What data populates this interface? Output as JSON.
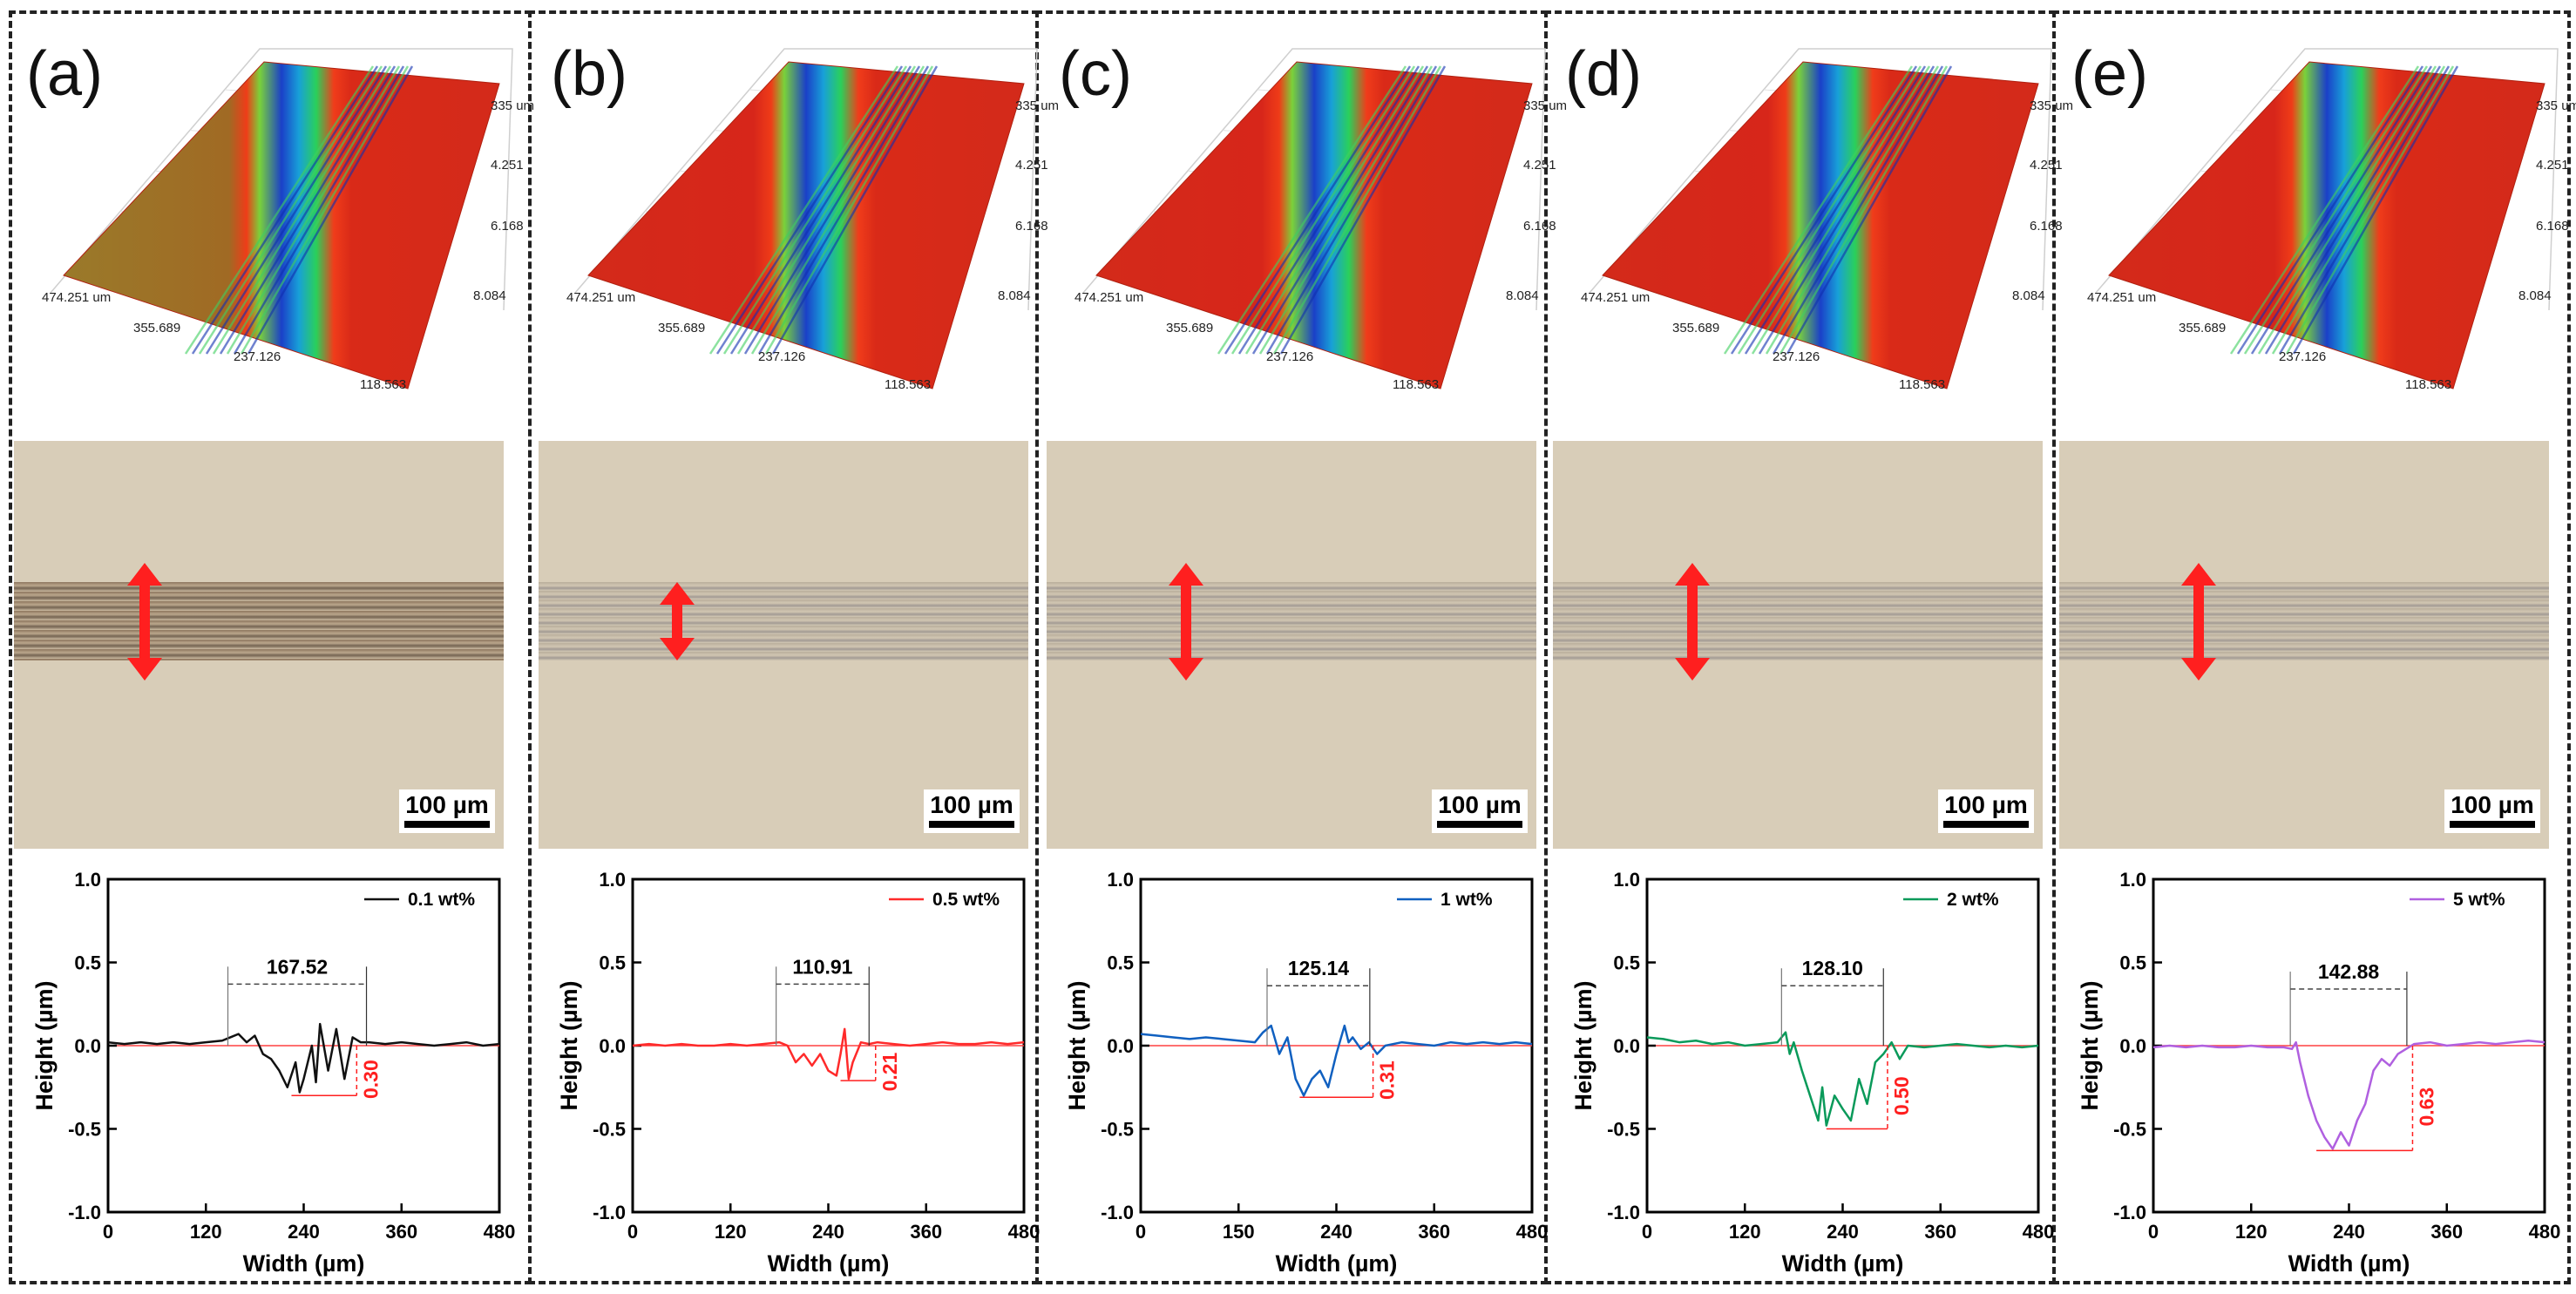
{
  "figure": {
    "panels": [
      {
        "label": "(a)",
        "scalebar": "100 µm",
        "surface3d": {
          "axis_labels": [
            "474.251 um",
            "355.689",
            "237.126",
            "118.563",
            "335 um",
            "4.251",
            "6.168",
            "8.084"
          ]
        },
        "colors": {
          "trace": "#111111",
          "track_dark": "#5a3a22",
          "annotation": "#ff1f1f"
        }
      },
      {
        "label": "(b)",
        "scalebar": "100 µm",
        "surface3d": {
          "axis_labels": [
            "474.251 um",
            "355.689",
            "237.126",
            "118.563",
            "335 um",
            "4.251",
            "6.168",
            "8.084"
          ]
        },
        "colors": {
          "trace": "#ff2a2a",
          "track_dark": "#7a7a8a",
          "annotation": "#ff1f1f"
        }
      },
      {
        "label": "(c)",
        "scalebar": "100 µm",
        "surface3d": {
          "axis_labels": [
            "474.251 um",
            "355.689",
            "237.126",
            "118.563",
            "335 um",
            "4.251",
            "6.168",
            "8.084"
          ]
        },
        "colors": {
          "trace": "#1060c0",
          "track_dark": "#6a6a7a",
          "annotation": "#ff1f1f"
        }
      },
      {
        "label": "(d)",
        "scalebar": "100 µm",
        "surface3d": {
          "axis_labels": [
            "474.251 um",
            "355.689",
            "237.126",
            "118.563",
            "335 um",
            "4.251",
            "6.168",
            "8.084"
          ]
        },
        "colors": {
          "trace": "#0a9a5a",
          "track_dark": "#6a6a7a",
          "annotation": "#ff1f1f"
        }
      },
      {
        "label": "(e)",
        "scalebar": "100 µm",
        "surface3d": {
          "axis_labels": [
            "474.251 um",
            "355.689",
            "237.126",
            "118.563",
            "335 um",
            "4.251",
            "6.168",
            "8.084"
          ]
        },
        "colors": {
          "trace": "#b060e0",
          "track_dark": "#5a5a8a",
          "annotation": "#ff1f1f"
        }
      }
    ]
  },
  "chart_data": [
    {
      "type": "line",
      "xlabel": "Width (µm)",
      "ylabel": "Height (µm)",
      "xlim": [
        0,
        480
      ],
      "ylim": [
        -1.0,
        1.0
      ],
      "xticks": [
        "0",
        "120",
        "240",
        "360",
        "480"
      ],
      "yticks": [
        "1.0",
        "0.5",
        "0.0",
        "-0.5",
        "-1.0"
      ],
      "legend": "0.1 wt%",
      "legend_position": "top-right",
      "width_annotation": {
        "text": "167.52",
        "from": 147,
        "to": 317,
        "y": 0.37
      },
      "depth_annotation": {
        "text": "0.30",
        "x_from": 225,
        "x_to": 305,
        "y_min": -0.3
      },
      "x": [
        0,
        20,
        40,
        60,
        80,
        100,
        120,
        140,
        150,
        160,
        170,
        180,
        190,
        200,
        210,
        220,
        230,
        235,
        240,
        250,
        255,
        260,
        270,
        280,
        290,
        300,
        310,
        320,
        340,
        360,
        380,
        400,
        420,
        440,
        460,
        480
      ],
      "y": [
        0.02,
        0.01,
        0.02,
        0.01,
        0.02,
        0.01,
        0.02,
        0.03,
        0.05,
        0.07,
        0.02,
        0.06,
        -0.05,
        -0.08,
        -0.15,
        -0.25,
        -0.1,
        -0.28,
        -0.2,
        0.0,
        -0.22,
        0.13,
        -0.15,
        0.1,
        -0.2,
        0.05,
        0.02,
        0.02,
        0.01,
        0.02,
        0.01,
        0.0,
        0.01,
        0.02,
        0.0,
        0.01
      ]
    },
    {
      "type": "line",
      "xlabel": "Width (µm)",
      "ylabel": "Height (µm)",
      "xlim": [
        0,
        480
      ],
      "ylim": [
        -1.0,
        1.0
      ],
      "xticks": [
        "0",
        "120",
        "240",
        "360",
        "480"
      ],
      "yticks": [
        "1.0",
        "0.5",
        "0.0",
        "-0.5",
        "-1.0"
      ],
      "legend": "0.5 wt%",
      "legend_position": "top-right",
      "width_annotation": {
        "text": "110.91",
        "from": 176,
        "to": 290,
        "y": 0.37
      },
      "depth_annotation": {
        "text": "0.21",
        "x_from": 255,
        "x_to": 298,
        "y_min": -0.21
      },
      "x": [
        0,
        20,
        40,
        60,
        80,
        100,
        120,
        140,
        160,
        180,
        190,
        200,
        210,
        220,
        230,
        240,
        250,
        255,
        260,
        265,
        270,
        280,
        290,
        300,
        320,
        340,
        360,
        380,
        400,
        420,
        440,
        460,
        480
      ],
      "y": [
        0.0,
        0.01,
        0.0,
        0.01,
        0.0,
        0.0,
        0.01,
        0.0,
        0.01,
        0.02,
        0.0,
        -0.1,
        -0.05,
        -0.12,
        -0.05,
        -0.15,
        -0.18,
        -0.05,
        0.1,
        -0.2,
        -0.1,
        0.02,
        0.01,
        0.02,
        0.01,
        0.0,
        0.01,
        0.02,
        0.01,
        0.01,
        0.02,
        0.01,
        0.02
      ]
    },
    {
      "type": "line",
      "xlabel": "Width (µm)",
      "ylabel": "Height (µm)",
      "xlim": [
        0,
        480
      ],
      "ylim": [
        -1.0,
        1.0
      ],
      "xticks": [
        "0",
        "150",
        "240",
        "360",
        "480"
      ],
      "yticks": [
        "1.0",
        "0.5",
        "0.0",
        "-0.5",
        "-1.0"
      ],
      "legend": "1 wt%",
      "legend_position": "top-right",
      "width_annotation": {
        "text": "125.14",
        "from": 155,
        "to": 281,
        "y": 0.36
      },
      "depth_annotation": {
        "text": "0.31",
        "x_from": 195,
        "x_to": 285,
        "y_min": -0.31
      },
      "x": [
        0,
        20,
        40,
        60,
        80,
        100,
        120,
        140,
        150,
        160,
        170,
        180,
        190,
        200,
        210,
        220,
        230,
        240,
        250,
        255,
        260,
        270,
        280,
        290,
        300,
        320,
        340,
        360,
        380,
        400,
        420,
        440,
        460,
        480
      ],
      "y": [
        0.07,
        0.06,
        0.05,
        0.04,
        0.05,
        0.04,
        0.03,
        0.02,
        0.08,
        0.12,
        -0.05,
        0.05,
        -0.2,
        -0.3,
        -0.2,
        -0.15,
        -0.25,
        -0.05,
        0.12,
        0.02,
        0.05,
        -0.02,
        0.02,
        -0.05,
        0.0,
        0.02,
        0.01,
        0.0,
        0.02,
        0.01,
        0.02,
        0.01,
        0.02,
        0.01
      ]
    },
    {
      "type": "line",
      "xlabel": "Width (µm)",
      "ylabel": "Height (µm)",
      "xlim": [
        0,
        480
      ],
      "ylim": [
        -1.0,
        1.0
      ],
      "xticks": [
        "0",
        "120",
        "240",
        "360",
        "480"
      ],
      "yticks": [
        "1.0",
        "0.5",
        "0.0",
        "-0.5",
        "-1.0"
      ],
      "legend": "2 wt%",
      "legend_position": "top-right",
      "width_annotation": {
        "text": "128.10",
        "from": 165,
        "to": 290,
        "y": 0.36
      },
      "depth_annotation": {
        "text": "0.50",
        "x_from": 220,
        "x_to": 295,
        "y_min": -0.5
      },
      "x": [
        0,
        20,
        40,
        60,
        80,
        100,
        120,
        140,
        160,
        170,
        175,
        180,
        190,
        200,
        210,
        215,
        220,
        230,
        240,
        250,
        260,
        270,
        280,
        290,
        300,
        310,
        320,
        340,
        360,
        380,
        400,
        420,
        440,
        460,
        480
      ],
      "y": [
        0.05,
        0.04,
        0.02,
        0.03,
        0.01,
        0.02,
        0.0,
        0.01,
        0.02,
        0.08,
        -0.05,
        0.02,
        -0.15,
        -0.3,
        -0.45,
        -0.25,
        -0.48,
        -0.3,
        -0.38,
        -0.45,
        -0.2,
        -0.35,
        -0.1,
        -0.05,
        0.02,
        -0.08,
        0.0,
        -0.01,
        0.0,
        0.01,
        0.0,
        -0.01,
        0.0,
        -0.01,
        0.0
      ]
    },
    {
      "type": "line",
      "xlabel": "Width (µm)",
      "ylabel": "Height (µm)",
      "xlim": [
        0,
        480
      ],
      "ylim": [
        -1.0,
        1.0
      ],
      "xticks": [
        "0",
        "120",
        "240",
        "360",
        "480"
      ],
      "yticks": [
        "1.0",
        "0.5",
        "0.0",
        "-0.5",
        "-1.0"
      ],
      "legend": "5 wt%",
      "legend_position": "top-right",
      "width_annotation": {
        "text": "142.88",
        "from": 168,
        "to": 311,
        "y": 0.34
      },
      "depth_annotation": {
        "text": "0.63",
        "x_from": 200,
        "x_to": 318,
        "y_min": -0.63
      },
      "x": [
        0,
        20,
        40,
        60,
        80,
        100,
        120,
        140,
        160,
        170,
        175,
        180,
        190,
        200,
        210,
        220,
        230,
        240,
        250,
        260,
        270,
        280,
        290,
        300,
        310,
        320,
        340,
        360,
        380,
        400,
        420,
        440,
        460,
        480
      ],
      "y": [
        -0.01,
        0.0,
        -0.01,
        0.0,
        -0.01,
        -0.01,
        0.0,
        -0.01,
        -0.01,
        -0.02,
        0.02,
        -0.1,
        -0.3,
        -0.45,
        -0.55,
        -0.62,
        -0.52,
        -0.6,
        -0.45,
        -0.35,
        -0.15,
        -0.08,
        -0.12,
        -0.05,
        -0.02,
        0.01,
        0.02,
        0.0,
        0.01,
        0.02,
        0.01,
        0.02,
        0.03,
        0.02
      ]
    }
  ]
}
